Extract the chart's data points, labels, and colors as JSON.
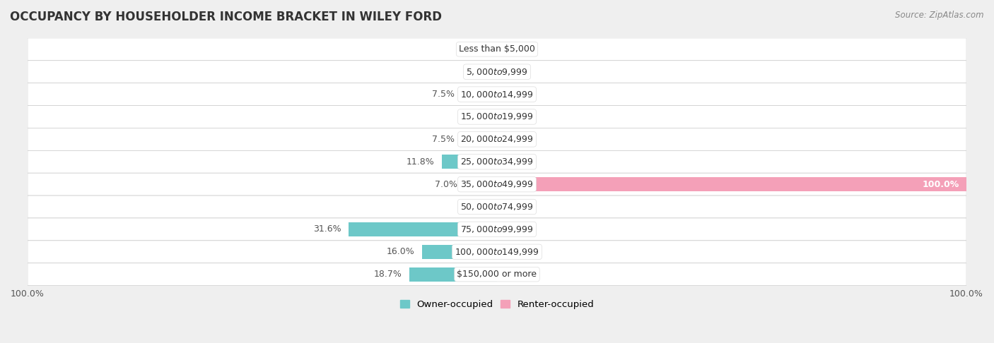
{
  "title": "OCCUPANCY BY HOUSEHOLDER INCOME BRACKET IN WILEY FORD",
  "source": "Source: ZipAtlas.com",
  "categories": [
    "Less than $5,000",
    "$5,000 to $9,999",
    "$10,000 to $14,999",
    "$15,000 to $19,999",
    "$20,000 to $24,999",
    "$25,000 to $34,999",
    "$35,000 to $49,999",
    "$50,000 to $74,999",
    "$75,000 to $99,999",
    "$100,000 to $149,999",
    "$150,000 or more"
  ],
  "owner_values": [
    0.0,
    0.0,
    7.5,
    0.0,
    7.5,
    11.8,
    7.0,
    0.0,
    31.6,
    16.0,
    18.7
  ],
  "renter_values": [
    0.0,
    0.0,
    0.0,
    0.0,
    0.0,
    0.0,
    100.0,
    0.0,
    0.0,
    0.0,
    0.0
  ],
  "owner_color": "#6dc8c8",
  "renter_color": "#f4a0b8",
  "bg_color": "#efefef",
  "row_bg_color": "#ffffff",
  "row_alt_color": "#f5f5f5",
  "bar_height": 0.62,
  "label_fontsize": 9,
  "title_fontsize": 12,
  "source_fontsize": 8.5,
  "legend_fontsize": 9.5,
  "tick_fontsize": 9,
  "cat_label_fontsize": 9
}
